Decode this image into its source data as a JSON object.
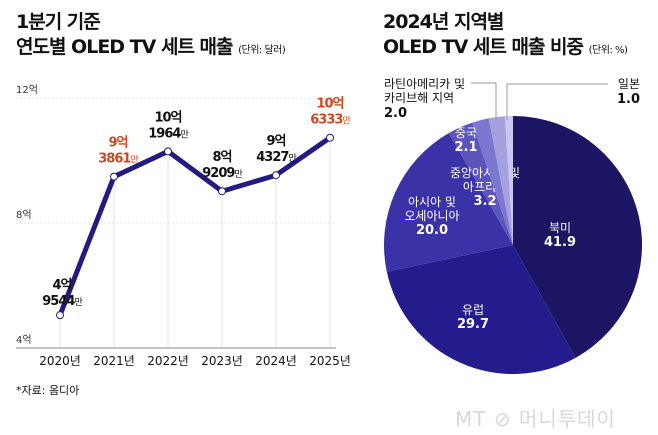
{
  "chart_data": [
    {
      "type": "line",
      "title_line1": "1분기 기준",
      "title_line2": "연도별 OLED TV 세트 매출",
      "unit": "(단위: 달러)",
      "categories": [
        "2020년",
        "2021년",
        "2022년",
        "2023년",
        "2024년",
        "2025년"
      ],
      "values": [
        495440000,
        938610000,
        1019640000,
        892090000,
        943270000,
        1063330000
      ],
      "data_labels": [
        {
          "top": "4억",
          "bottom": "9544",
          "suffix": "만",
          "highlight": false
        },
        {
          "top": "9억",
          "bottom": "3861",
          "suffix": "만",
          "highlight": true
        },
        {
          "top": "10억",
          "bottom": "1964",
          "suffix": "만",
          "highlight": false
        },
        {
          "top": "8억",
          "bottom": "9209",
          "suffix": "만",
          "highlight": false
        },
        {
          "top": "9억",
          "bottom": "4327",
          "suffix": "만",
          "highlight": false
        },
        {
          "top": "10억",
          "bottom": "6333",
          "suffix": "만",
          "highlight": true
        }
      ],
      "yticks": [
        {
          "value": 400000000,
          "label": "4억"
        },
        {
          "value": 800000000,
          "label": "8억"
        },
        {
          "value": 1200000000,
          "label": "12억"
        }
      ],
      "ylim": [
        400000000,
        1200000000
      ],
      "grid": true,
      "source": "*자료: 옴디아",
      "line_color": "#231c80",
      "highlight_color": "#d2461e"
    },
    {
      "type": "pie",
      "title_line1": "2024년 지역별",
      "title_line2": "OLED TV 세트 매출 비중",
      "unit": "(단위: %)",
      "slices": [
        {
          "label": "북미",
          "value": 41.9,
          "color": "#1b1563"
        },
        {
          "label": "유럽",
          "value": 29.7,
          "color": "#241c8c"
        },
        {
          "label": "아시아 및 오세아니아",
          "label_lines": [
            "아시아 및",
            "오세아니아"
          ],
          "value": 20.0,
          "color": "#3a32a6"
        },
        {
          "label": "중앙아시아 및 아프리카",
          "label_lines": [
            "중앙아시아 및",
            "아프리카"
          ],
          "value": 3.2,
          "color": "#5b55bc"
        },
        {
          "label": "중국",
          "value": 2.1,
          "color": "#7c78cf"
        },
        {
          "label": "라틴아메리카 및 카리브해 지역",
          "label_lines": [
            "라틴아메리카 및",
            "카리브해 지역"
          ],
          "value": 2.0,
          "color": "#a4a1de"
        },
        {
          "label": "일본",
          "value": 1.0,
          "color": "#cac8ee"
        }
      ]
    }
  ],
  "watermark": "MT 머니투데이"
}
